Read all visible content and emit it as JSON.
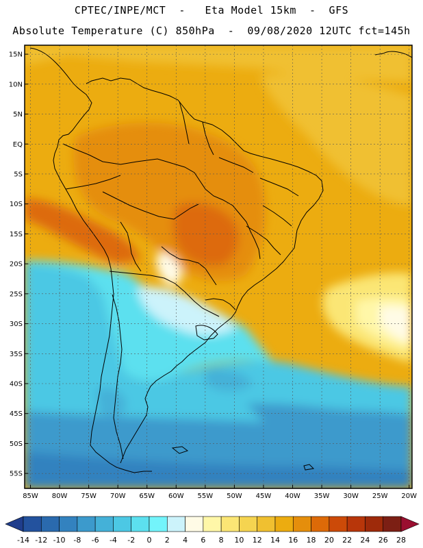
{
  "header": {
    "line1": "CPTEC/INPE/MCT  -   Eta Model 15km  -  GFS",
    "line2": "Absolute Temperature (C) 850hPa  -  09/08/2020 12UTC fct=145h"
  },
  "map": {
    "lat_labels": [
      "15N",
      "10N",
      "5N",
      "EQ",
      "5S",
      "10S",
      "15S",
      "20S",
      "25S",
      "30S",
      "35S",
      "40S",
      "45S",
      "50S",
      "55S"
    ],
    "lon_labels": [
      "85W",
      "80W",
      "75W",
      "70W",
      "65W",
      "60W",
      "55W",
      "50W",
      "45W",
      "40W",
      "35W",
      "30W",
      "25W",
      "20W"
    ],
    "lat_values": [
      15,
      10,
      5,
      0,
      -5,
      -10,
      -15,
      -20,
      -25,
      -30,
      -35,
      -40,
      -45,
      -50,
      -55
    ],
    "lon_values": [
      -85,
      -80,
      -75,
      -70,
      -65,
      -60,
      -55,
      -50,
      -45,
      -40,
      -35,
      -30,
      -25,
      -20
    ],
    "extent": {
      "lon_min": -86,
      "lon_max": -19.5,
      "lat_min": -57.5,
      "lat_max": 16.5
    }
  },
  "colorbar": {
    "labels": [
      "-14",
      "-12",
      "-10",
      "-8",
      "-6",
      "-4",
      "-2",
      "0",
      "2",
      "4",
      "6",
      "8",
      "10",
      "12",
      "14",
      "16",
      "18",
      "20",
      "22",
      "24",
      "26",
      "28"
    ],
    "colors": [
      "#1f3d8c",
      "#23529e",
      "#2a6aae",
      "#3382bf",
      "#3c9acc",
      "#44b1d8",
      "#4cc8e4",
      "#5ce0ef",
      "#73f4fb",
      "#ccf3fb",
      "#fffbe6",
      "#fff7a8",
      "#fbe675",
      "#f5d450",
      "#f0c030",
      "#ecac10",
      "#e58e0c",
      "#dd6a08",
      "#cc4a08",
      "#b8360a",
      "#9e2a0a",
      "#7c1f14",
      "#9a0f30"
    ]
  }
}
